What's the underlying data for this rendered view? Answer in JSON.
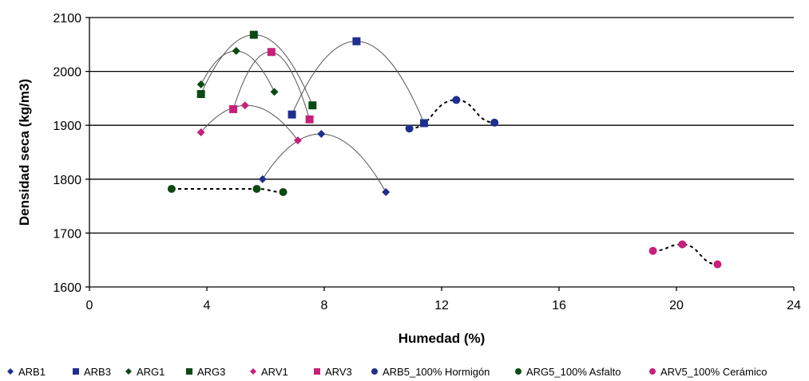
{
  "chart_data": {
    "type": "scatter",
    "title": "",
    "xlabel": "Humedad (%)",
    "ylabel": "Densidad seca (kg/m3)",
    "xlim": [
      0,
      24
    ],
    "ylim": [
      1600,
      2100
    ],
    "x_ticks": [
      0,
      4,
      8,
      12,
      16,
      20,
      24
    ],
    "y_ticks": [
      1600,
      1700,
      1800,
      1900,
      2000,
      2100
    ],
    "x_tick_labels": [
      "0",
      "4",
      "8",
      "12",
      "16",
      "20",
      "24"
    ],
    "y_tick_labels": [
      "1600",
      "1700",
      "1800",
      "1900",
      "2000",
      "2100"
    ],
    "grid": "horizontal",
    "legend_position": "bottom",
    "series": [
      {
        "name": "ARB1",
        "color": "#1f2f8f",
        "marker": "diamond",
        "curve": "solid",
        "points": [
          [
            5.9,
            1800
          ],
          [
            7.9,
            1884
          ],
          [
            10.1,
            1776
          ]
        ]
      },
      {
        "name": "ARB3",
        "color": "#1f2f8f",
        "marker": "square",
        "curve": "solid",
        "points": [
          [
            6.9,
            1920
          ],
          [
            9.1,
            2056
          ],
          [
            11.4,
            1904
          ]
        ]
      },
      {
        "name": "ARG1",
        "color": "#0b4a12",
        "marker": "diamond",
        "curve": "solid",
        "points": [
          [
            3.8,
            1976
          ],
          [
            5.0,
            2038
          ],
          [
            6.3,
            1962
          ]
        ]
      },
      {
        "name": "ARG3",
        "color": "#0b4a12",
        "marker": "square",
        "curve": "solid",
        "points": [
          [
            3.8,
            1958
          ],
          [
            5.6,
            2068
          ],
          [
            7.6,
            1937
          ]
        ]
      },
      {
        "name": "ARV1",
        "color": "#c8207a",
        "marker": "diamond",
        "curve": "solid",
        "points": [
          [
            3.8,
            1887
          ],
          [
            5.3,
            1937
          ],
          [
            7.1,
            1872
          ]
        ]
      },
      {
        "name": "ARV3",
        "color": "#c8207a",
        "marker": "square",
        "curve": "solid",
        "points": [
          [
            4.9,
            1930
          ],
          [
            6.2,
            2036
          ],
          [
            7.5,
            1911
          ]
        ]
      },
      {
        "name": "ARB5_100% Hormigón",
        "color": "#1f2f8f",
        "marker": "circle",
        "curve": "dashed",
        "points": [
          [
            10.9,
            1894
          ],
          [
            12.5,
            1947
          ],
          [
            13.8,
            1905
          ]
        ]
      },
      {
        "name": "ARG5_100% Asfalto",
        "color": "#0b4a12",
        "marker": "circle",
        "curve": "dashed",
        "points": [
          [
            2.8,
            1782
          ],
          [
            5.7,
            1782
          ],
          [
            6.6,
            1776
          ]
        ]
      },
      {
        "name": "ARV5_100% Cerámico",
        "color": "#c8207a",
        "marker": "circle",
        "curve": "dashed",
        "points": [
          [
            19.2,
            1667
          ],
          [
            20.2,
            1679
          ],
          [
            21.4,
            1642
          ]
        ]
      }
    ]
  }
}
